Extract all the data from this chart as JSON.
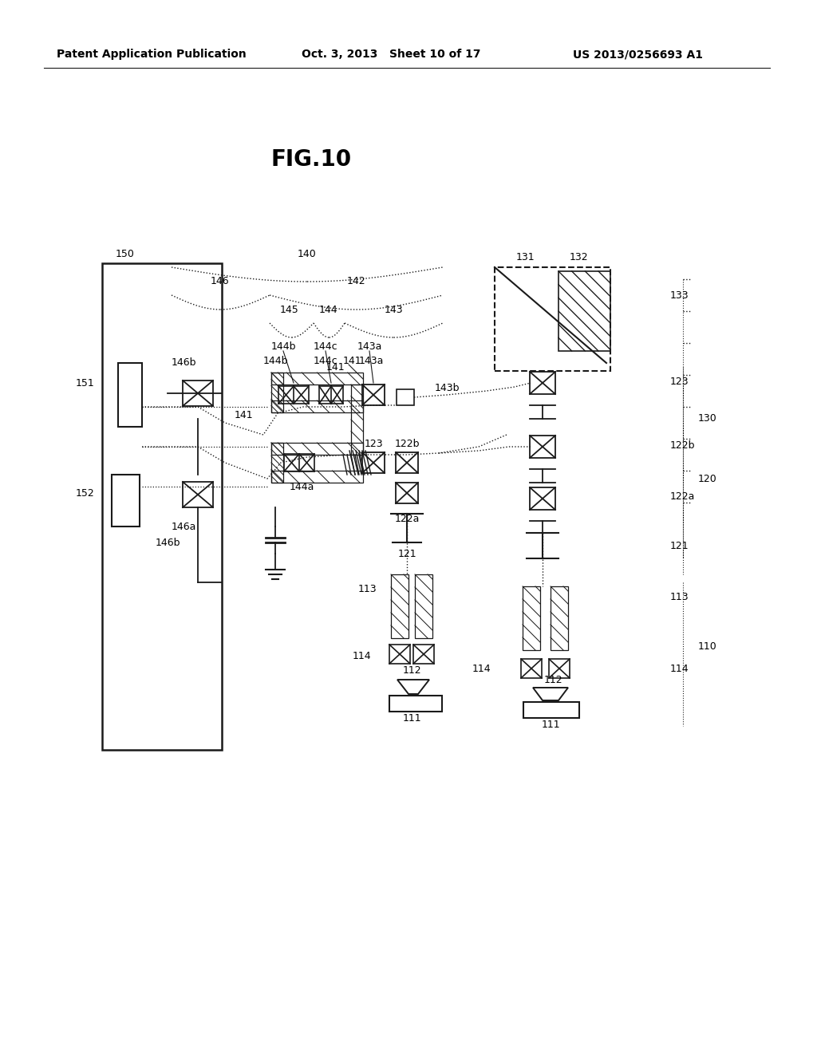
{
  "title": "FIG.10",
  "header_left": "Patent Application Publication",
  "header_mid": "Oct. 3, 2013   Sheet 10 of 17",
  "header_right": "US 2013/0256693 A1",
  "bg_color": "#ffffff",
  "line_color": "#1a1a1a"
}
